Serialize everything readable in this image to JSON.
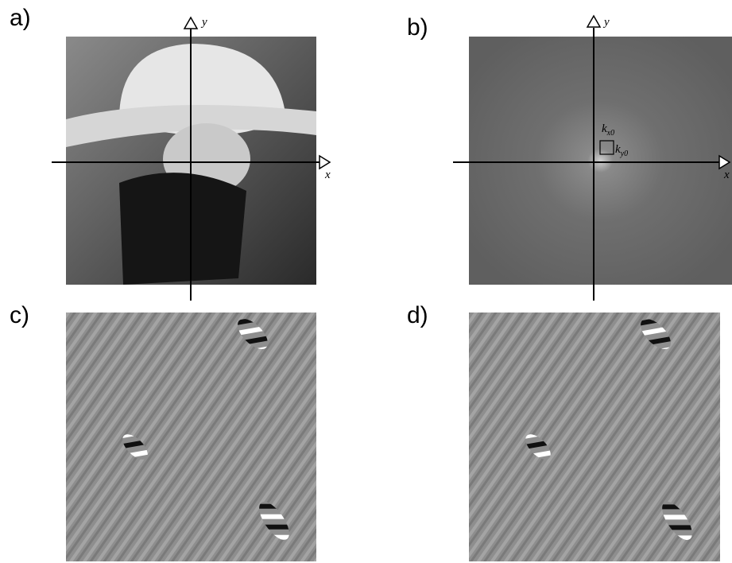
{
  "panels": [
    {
      "label": "a)",
      "x_axis": "x",
      "y_axis": "y"
    },
    {
      "label": "b)",
      "x_axis": "x",
      "y_axis": "y"
    },
    {
      "label": "c)"
    },
    {
      "label": "d)"
    }
  ],
  "annotations": {
    "kx0": {
      "base": "k",
      "sub": "x0"
    },
    "ky0": {
      "base": "k",
      "sub": "y0"
    }
  }
}
